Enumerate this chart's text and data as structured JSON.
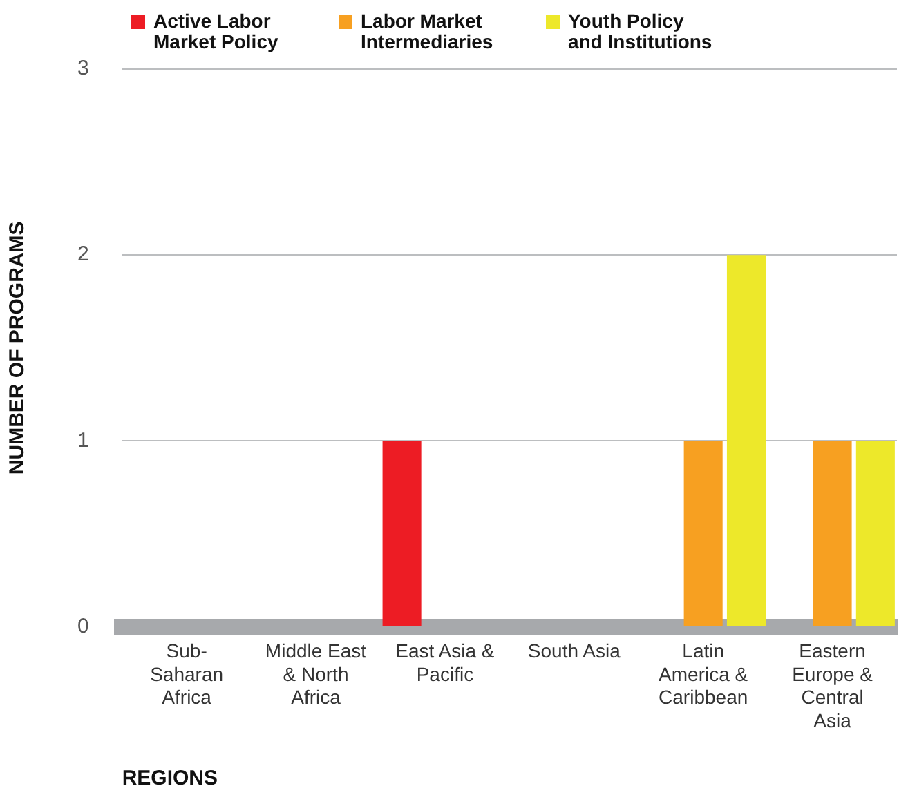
{
  "chart_data": {
    "type": "bar",
    "xlabel": "REGIONS",
    "ylabel": "NUMBER OF PROGRAMS",
    "categories": [
      "Sub-Saharan Africa",
      "Middle East & North Africa",
      "East Asia & Pacific",
      "South Asia",
      "Latin America & Caribbean",
      "Eastern Europe & Central Asia"
    ],
    "series": [
      {
        "name": "Active Labor Market Policy",
        "color": "#ed1c24",
        "values": [
          0,
          0,
          1,
          0,
          0,
          0
        ]
      },
      {
        "name": "Labor Market Intermediaries",
        "color": "#f7a021",
        "values": [
          0,
          0,
          0,
          0,
          1,
          1
        ]
      },
      {
        "name": "Youth Policy and Institutions",
        "color": "#ede82a",
        "values": [
          0,
          0,
          0,
          0,
          2,
          1
        ]
      }
    ],
    "ylim": [
      0,
      3
    ],
    "yticks": [
      0,
      1,
      2,
      3
    ],
    "grid": "y",
    "legend": "top left"
  }
}
